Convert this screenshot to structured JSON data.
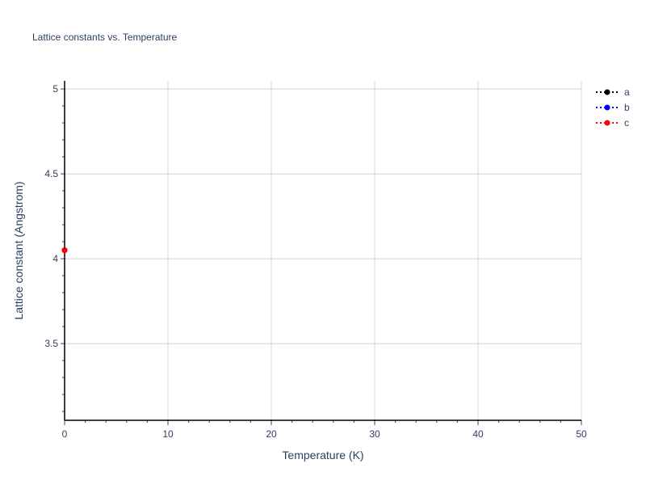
{
  "chart_data": {
    "type": "line",
    "title": "Lattice constants vs. Temperature",
    "xlabel": "Temperature (K)",
    "ylabel": "Lattice constant (Angstrom)",
    "xlim": [
      0,
      50
    ],
    "ylim": [
      3.048,
      5.048
    ],
    "x_ticks": [
      "0",
      "10",
      "20",
      "30",
      "40",
      "50"
    ],
    "x_tick_values": [
      0,
      10,
      20,
      30,
      40,
      50
    ],
    "y_ticks": [
      "3.5",
      "4",
      "4.5",
      "5"
    ],
    "y_tick_values": [
      3.5,
      4,
      4.5,
      5
    ],
    "x_minor_step": 2,
    "y_minor_step": 0.1,
    "grid": true,
    "legend_position": "top-right",
    "series": [
      {
        "name": "a",
        "color": "#000000",
        "x": [
          0
        ],
        "y": [
          4.05
        ],
        "line": "dotted",
        "marker": "circle"
      },
      {
        "name": "b",
        "color": "#0000ff",
        "x": [
          0
        ],
        "y": [
          4.05
        ],
        "line": "dotted",
        "marker": "circle"
      },
      {
        "name": "c",
        "color": "#ff0000",
        "x": [
          0
        ],
        "y": [
          4.05
        ],
        "line": "dotted",
        "marker": "circle"
      }
    ]
  }
}
